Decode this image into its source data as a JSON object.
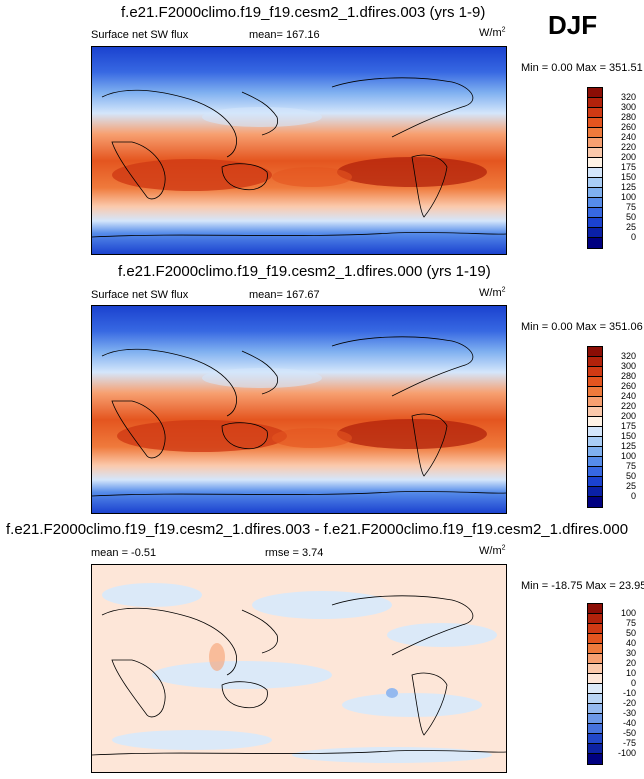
{
  "season": "DJF",
  "panels": [
    {
      "title": "f.e21.F2000climo.f19_f19.cesm2_1.dfires.003 (yrs 1-9)",
      "left_label": "Surface net SW flux",
      "mid_label": "mean= 167.16",
      "units": "W/m",
      "units_sup": "2",
      "minmax": "Min =   0.00 Max = 351.51",
      "colorbar_labels": [
        "320",
        "300",
        "280",
        "260",
        "240",
        "220",
        "200",
        "175",
        "150",
        "125",
        "100",
        "75",
        "50",
        "25",
        "0"
      ],
      "colorbar_colors": [
        "#8b0d05",
        "#b2220b",
        "#d03a14",
        "#e4551f",
        "#ef7a3c",
        "#f7a071",
        "#fbc9ab",
        "#fff3e6",
        "#d4e6fb",
        "#a9cdf6",
        "#7fb0f0",
        "#568cea",
        "#3768e2",
        "#1b42cf",
        "#0a20a6",
        "#000080"
      ]
    },
    {
      "title": "f.e21.F2000climo.f19_f19.cesm2_1.dfires.000 (yrs 1-19)",
      "left_label": "Surface net SW flux",
      "mid_label": "mean= 167.67",
      "units": "W/m",
      "units_sup": "2",
      "minmax": "Min =   0.00 Max = 351.06",
      "colorbar_labels": [
        "320",
        "300",
        "280",
        "260",
        "240",
        "220",
        "200",
        "175",
        "150",
        "125",
        "100",
        "75",
        "50",
        "25",
        "0"
      ],
      "colorbar_colors": [
        "#8b0d05",
        "#b2220b",
        "#d03a14",
        "#e4551f",
        "#ef7a3c",
        "#f7a071",
        "#fbc9ab",
        "#fff3e6",
        "#d4e6fb",
        "#a9cdf6",
        "#7fb0f0",
        "#568cea",
        "#3768e2",
        "#1b42cf",
        "#0a20a6",
        "#000080"
      ]
    },
    {
      "title": "f.e21.F2000climo.f19_f19.cesm2_1.dfires.003 - f.e21.F2000climo.f19_f19.cesm2_1.dfires.000",
      "left_label": "mean =  -0.51",
      "mid_label": "rmse =   3.74",
      "units": "W/m",
      "units_sup": "2",
      "minmax": "Min = -18.75 Max =  23.95",
      "colorbar_labels": [
        "100",
        "75",
        "50",
        "40",
        "30",
        "20",
        "10",
        "0",
        "-10",
        "-20",
        "-30",
        "-40",
        "-50",
        "-75",
        "-100"
      ],
      "colorbar_colors": [
        "#8b0d05",
        "#b2220b",
        "#d03a14",
        "#e4551f",
        "#ef7a3c",
        "#f7a071",
        "#fbc9ab",
        "#fde6d8",
        "#dbe9f8",
        "#b8d4f4",
        "#94b9ef",
        "#6c98e8",
        "#4672dd",
        "#2247c9",
        "#0d22a3",
        "#000080"
      ]
    }
  ]
}
